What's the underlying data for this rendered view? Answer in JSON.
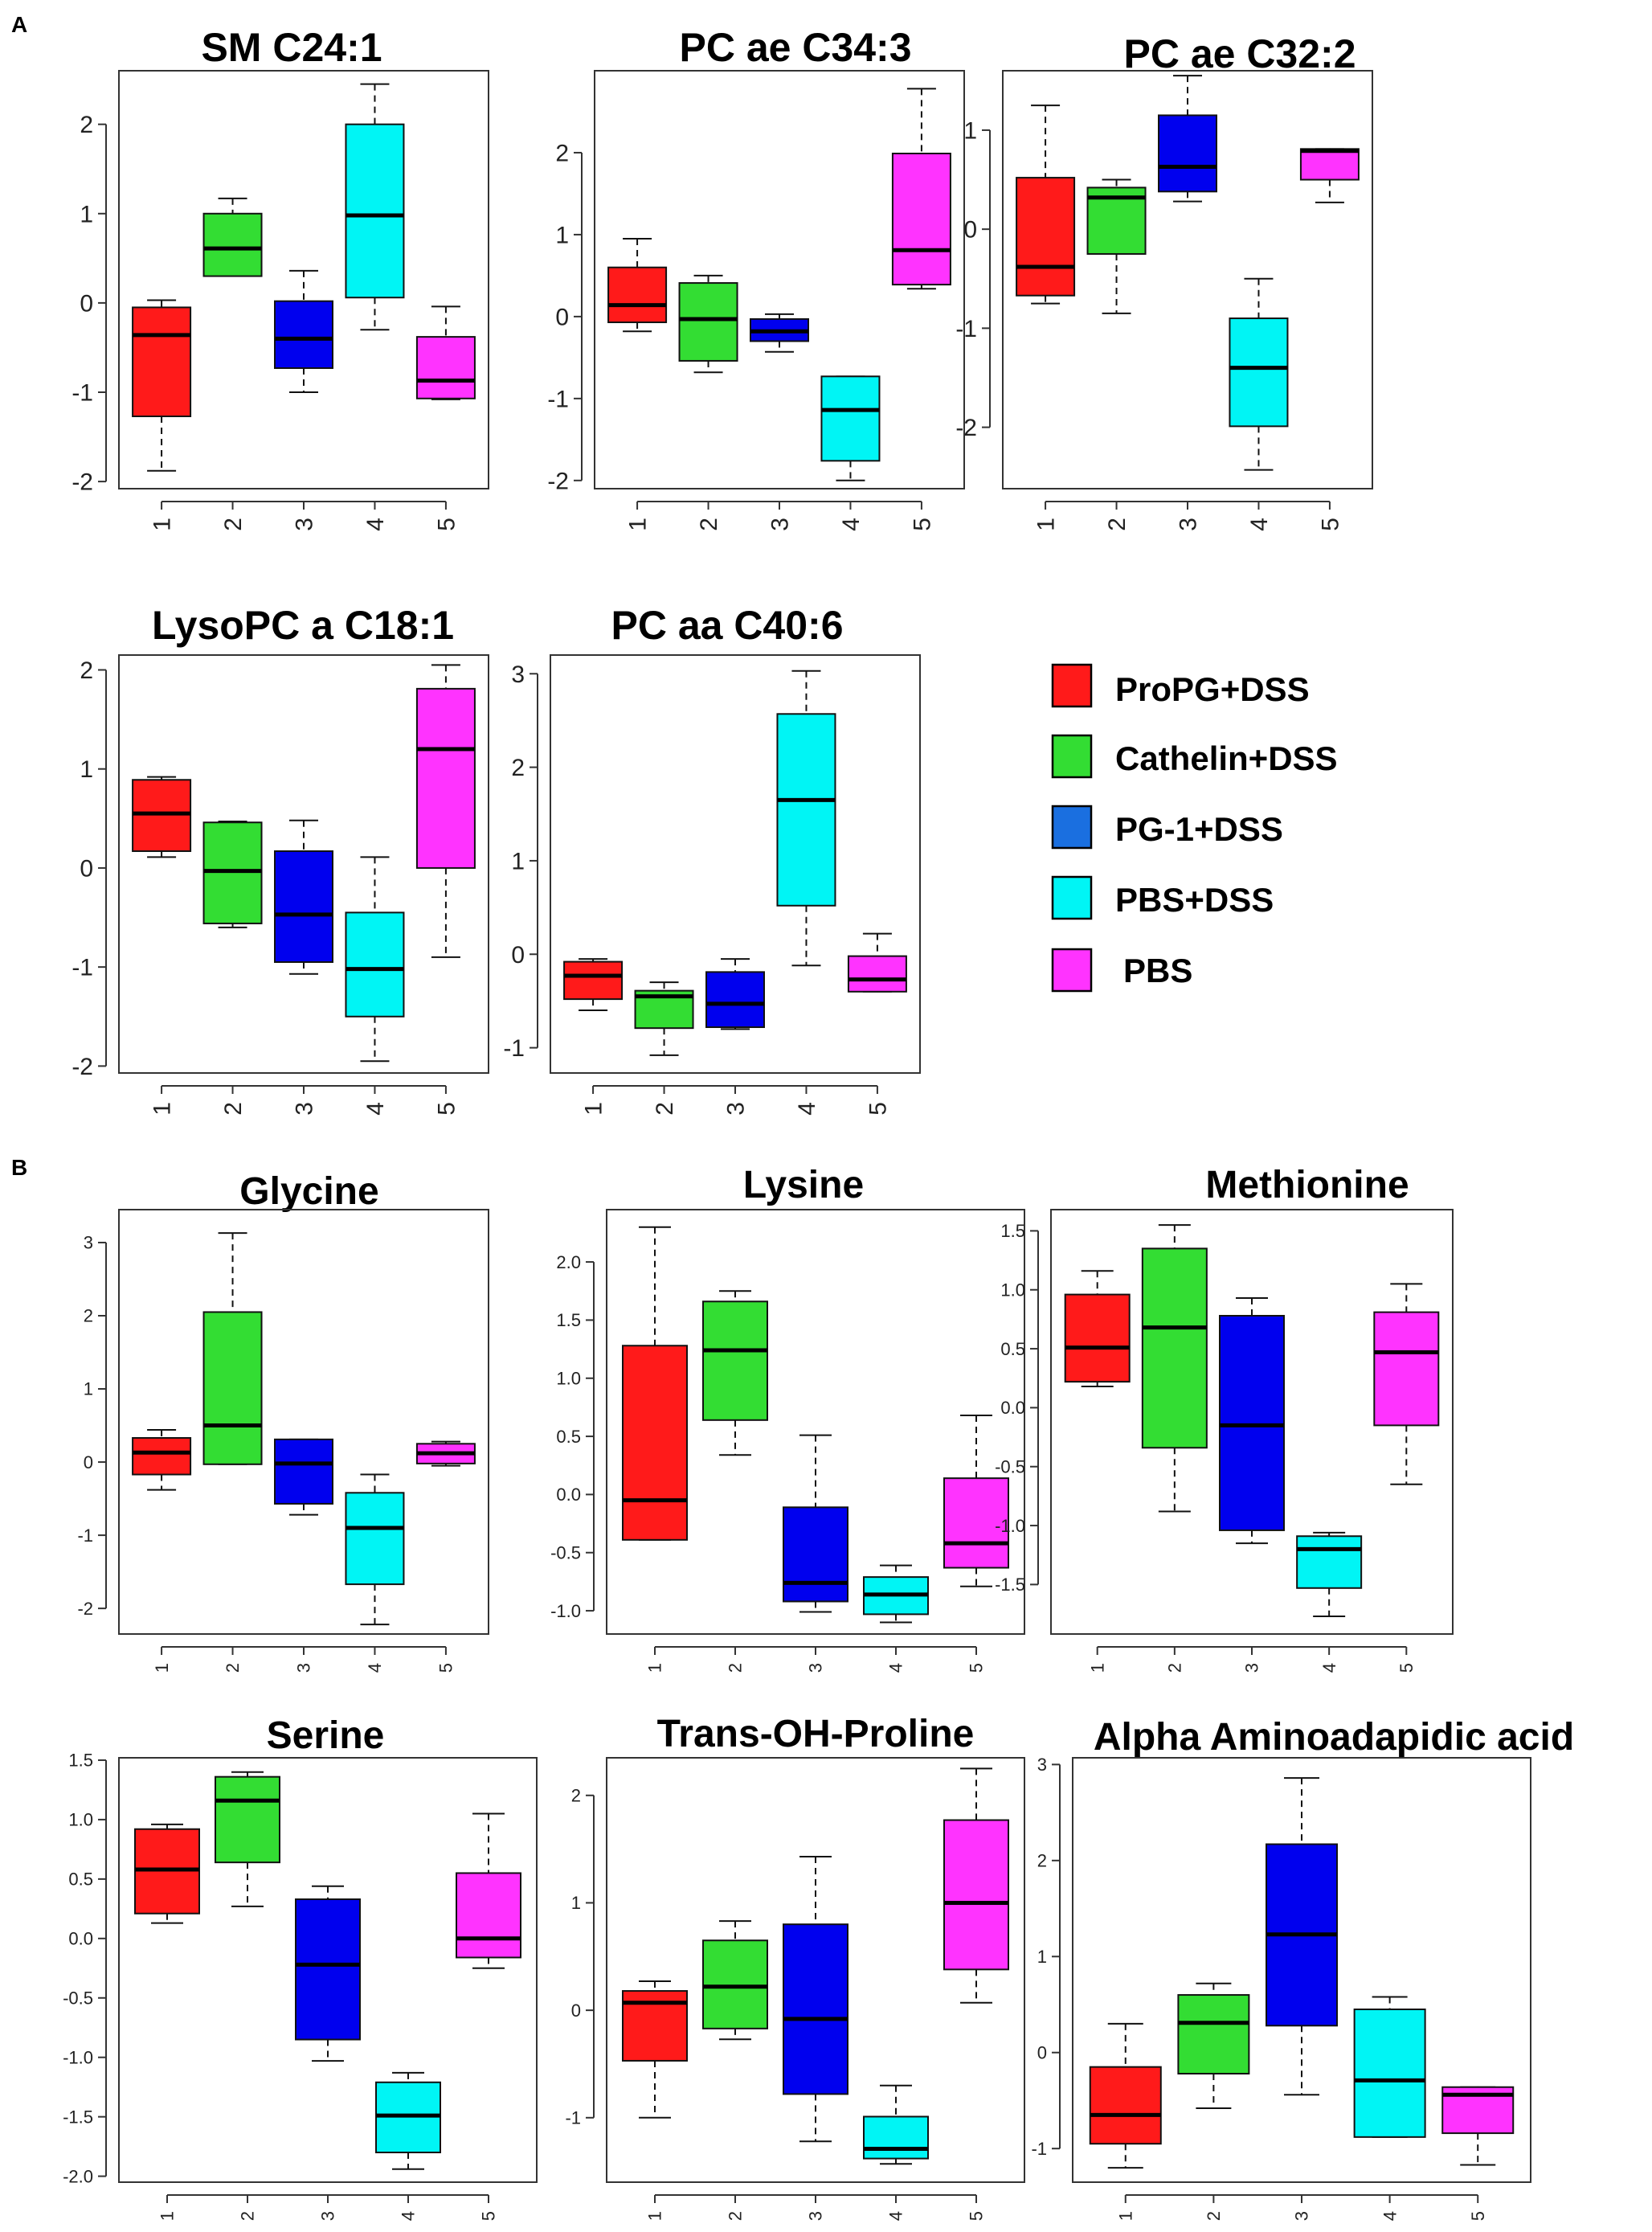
{
  "panel_labels": [
    "A",
    "B"
  ],
  "colors": {
    "group1": "#ff1a1a",
    "group2": "#33dd33",
    "group3": "#0000ee",
    "group4": "#00f5f5",
    "group5": "#ff33ff"
  },
  "legend": [
    {
      "label": "ProPG+DSS",
      "color": "#ff1a1a"
    },
    {
      "label": "Cathelin+DSS",
      "color": "#33dd33"
    },
    {
      "label": "PG-1+DSS",
      "color": "#1a6fe0"
    },
    {
      "label": "PBS+DSS",
      "color": "#00f5f5"
    },
    {
      "label": "PBS",
      "color": "#ff33ff"
    }
  ],
  "chart_data": [
    {
      "type": "box",
      "panel": "A",
      "title": "SM C24:1",
      "categories": [
        "1",
        "2",
        "3",
        "4",
        "5"
      ],
      "ylim": [
        -2.08,
        2.6
      ],
      "yticks": [
        "2",
        "1",
        "0",
        "-1",
        "-2"
      ],
      "ytick_values": [
        2,
        1,
        0,
        -1,
        -2
      ],
      "boxes": [
        {
          "min": -1.88,
          "q1": -1.27,
          "median": -0.36,
          "q3": -0.05,
          "max": 0.03
        },
        {
          "min": 0.3,
          "q1": 0.3,
          "median": 0.61,
          "q3": 1.0,
          "max": 1.17
        },
        {
          "min": -1.0,
          "q1": -0.73,
          "median": -0.4,
          "q3": 0.02,
          "max": 0.36
        },
        {
          "min": -0.3,
          "q1": 0.06,
          "median": 0.98,
          "q3": 2.0,
          "max": 2.45
        },
        {
          "min": -1.08,
          "q1": -1.07,
          "median": -0.87,
          "q3": -0.38,
          "max": -0.04
        }
      ]
    },
    {
      "type": "box",
      "panel": "A",
      "title": "PC ae C34:3",
      "categories": [
        "1",
        "2",
        "3",
        "4",
        "5"
      ],
      "ylim": [
        -2.1,
        3.0
      ],
      "yticks": [
        "2",
        "1",
        "0",
        "-1",
        "-2"
      ],
      "ytick_values": [
        2,
        1,
        0,
        -1,
        -2
      ],
      "boxes": [
        {
          "min": -0.18,
          "q1": -0.07,
          "median": 0.14,
          "q3": 0.6,
          "max": 0.95
        },
        {
          "min": -0.68,
          "q1": -0.54,
          "median": -0.03,
          "q3": 0.41,
          "max": 0.5
        },
        {
          "min": -0.43,
          "q1": -0.3,
          "median": -0.18,
          "q3": -0.03,
          "max": 0.03
        },
        {
          "min": -2.0,
          "q1": -1.76,
          "median": -1.14,
          "q3": -0.73,
          "max": -0.73
        },
        {
          "min": 0.34,
          "q1": 0.39,
          "median": 0.81,
          "q3": 1.99,
          "max": 2.78
        }
      ]
    },
    {
      "type": "box",
      "panel": "A",
      "title": "PC ae C32:2",
      "categories": [
        "1",
        "2",
        "3",
        "4",
        "5"
      ],
      "ylim": [
        -2.62,
        1.6
      ],
      "yticks": [
        "1",
        "0",
        "-1",
        "-2"
      ],
      "ytick_values": [
        1,
        0,
        -1,
        -2
      ],
      "boxes": [
        {
          "min": -0.75,
          "q1": -0.67,
          "median": -0.38,
          "q3": 0.52,
          "max": 1.25
        },
        {
          "min": -0.85,
          "q1": -0.25,
          "median": 0.32,
          "q3": 0.42,
          "max": 0.5
        },
        {
          "min": 0.28,
          "q1": 0.38,
          "median": 0.63,
          "q3": 1.15,
          "max": 1.55
        },
        {
          "min": -2.43,
          "q1": -1.99,
          "median": -1.4,
          "q3": -0.9,
          "max": -0.5
        },
        {
          "min": 0.27,
          "q1": 0.5,
          "median": 0.79,
          "q3": 0.81,
          "max": 0.81
        }
      ]
    },
    {
      "type": "box",
      "panel": "A",
      "title": "LysoPC a C18:1",
      "categories": [
        "1",
        "2",
        "3",
        "4",
        "5"
      ],
      "ylim": [
        -2.07,
        2.15
      ],
      "yticks": [
        "2",
        "1",
        "0",
        "-1",
        "-2"
      ],
      "ytick_values": [
        2,
        1,
        0,
        -1,
        -2
      ],
      "boxes": [
        {
          "min": 0.11,
          "q1": 0.17,
          "median": 0.55,
          "q3": 0.89,
          "max": 0.92
        },
        {
          "min": -0.6,
          "q1": -0.56,
          "median": -0.03,
          "q3": 0.46,
          "max": 0.47
        },
        {
          "min": -1.07,
          "q1": -0.95,
          "median": -0.47,
          "q3": 0.17,
          "max": 0.48
        },
        {
          "min": -1.95,
          "q1": -1.5,
          "median": -1.02,
          "q3": -0.45,
          "max": 0.11
        },
        {
          "min": -0.9,
          "q1": 0.0,
          "median": 1.2,
          "q3": 1.81,
          "max": 2.05
        }
      ]
    },
    {
      "type": "box",
      "panel": "A",
      "title": "PC aa  C40:6",
      "categories": [
        "1",
        "2",
        "3",
        "4",
        "5"
      ],
      "ylim": [
        -1.27,
        3.2
      ],
      "yticks": [
        "3",
        "2",
        "1",
        "0",
        "-1"
      ],
      "ytick_values": [
        3,
        2,
        1,
        0,
        -1
      ],
      "boxes": [
        {
          "min": -0.6,
          "q1": -0.48,
          "median": -0.23,
          "q3": -0.08,
          "max": -0.05
        },
        {
          "min": -1.08,
          "q1": -0.79,
          "median": -0.45,
          "q3": -0.39,
          "max": -0.3
        },
        {
          "min": -0.8,
          "q1": -0.78,
          "median": -0.53,
          "q3": -0.19,
          "max": -0.05
        },
        {
          "min": -0.12,
          "q1": 0.52,
          "median": 1.65,
          "q3": 2.57,
          "max": 3.03
        },
        {
          "min": -0.4,
          "q1": -0.4,
          "median": -0.27,
          "q3": -0.02,
          "max": 0.22
        }
      ]
    },
    {
      "type": "box",
      "panel": "B",
      "title": "Glycine",
      "categories": [
        "1",
        "2",
        "3",
        "4",
        "5"
      ],
      "ylim": [
        -2.35,
        3.45
      ],
      "yticks": [
        "3",
        "2",
        "1",
        "0",
        "-1",
        "-2"
      ],
      "ytick_values": [
        3,
        2,
        1,
        0,
        -1,
        -2
      ],
      "boxes": [
        {
          "min": -0.38,
          "q1": -0.17,
          "median": 0.13,
          "q3": 0.33,
          "max": 0.44
        },
        {
          "min": -0.03,
          "q1": -0.03,
          "median": 0.5,
          "q3": 2.05,
          "max": 3.13
        },
        {
          "min": -0.72,
          "q1": -0.57,
          "median": -0.02,
          "q3": 0.31,
          "max": 0.31
        },
        {
          "min": -2.22,
          "q1": -1.67,
          "median": -0.9,
          "q3": -0.42,
          "max": -0.17
        },
        {
          "min": -0.05,
          "q1": -0.02,
          "median": 0.12,
          "q3": 0.25,
          "max": 0.28
        }
      ]
    },
    {
      "type": "box",
      "panel": "B",
      "title": "Lysine",
      "categories": [
        "1",
        "2",
        "3",
        "4",
        "5"
      ],
      "ylim": [
        -1.2,
        2.45
      ],
      "yticks": [
        "2.0",
        "1.5",
        "1.0",
        "0.5",
        "0.0",
        "-0.5",
        "-1.0"
      ],
      "ytick_values": [
        2.0,
        1.5,
        1.0,
        0.5,
        0.0,
        -0.5,
        -1.0
      ],
      "boxes": [
        {
          "min": -0.39,
          "q1": -0.39,
          "median": -0.05,
          "q3": 1.28,
          "max": 2.3
        },
        {
          "min": 0.34,
          "q1": 0.64,
          "median": 1.24,
          "q3": 1.66,
          "max": 1.75
        },
        {
          "min": -1.01,
          "q1": -0.92,
          "median": -0.76,
          "q3": -0.11,
          "max": 0.51
        },
        {
          "min": -1.1,
          "q1": -1.03,
          "median": -0.86,
          "q3": -0.71,
          "max": -0.61
        },
        {
          "min": -0.79,
          "q1": -0.63,
          "median": -0.42,
          "q3": 0.14,
          "max": 0.68
        }
      ]
    },
    {
      "type": "box",
      "panel": "B",
      "title": "Methionine",
      "categories": [
        "1",
        "2",
        "3",
        "4",
        "5"
      ],
      "ylim": [
        -1.92,
        1.68
      ],
      "yticks": [
        "1.5",
        "1.0",
        "0.5",
        "0.0",
        "-0.5",
        "-1.0",
        "-1.5"
      ],
      "ytick_values": [
        1.5,
        1.0,
        0.5,
        0.0,
        -0.5,
        -1.0,
        -1.5
      ],
      "boxes": [
        {
          "min": 0.18,
          "q1": 0.22,
          "median": 0.51,
          "q3": 0.96,
          "max": 1.16
        },
        {
          "min": -0.88,
          "q1": -0.34,
          "median": 0.68,
          "q3": 1.35,
          "max": 1.55
        },
        {
          "min": -1.15,
          "q1": -1.04,
          "median": -0.15,
          "q3": 0.78,
          "max": 0.93
        },
        {
          "min": -1.77,
          "q1": -1.53,
          "median": -1.2,
          "q3": -1.09,
          "max": -1.06
        },
        {
          "min": -0.65,
          "q1": -0.15,
          "median": 0.47,
          "q3": 0.81,
          "max": 1.05
        }
      ]
    },
    {
      "type": "box",
      "panel": "B",
      "title": "Serine",
      "categories": [
        "1",
        "2",
        "3",
        "4",
        "5"
      ],
      "ylim": [
        -2.05,
        1.52
      ],
      "yticks": [
        "1.5",
        "1.0",
        "0.5",
        "0.0",
        "-0.5",
        "-1.0",
        "-1.5",
        "-2.0"
      ],
      "ytick_values": [
        1.5,
        1.0,
        0.5,
        0.0,
        -0.5,
        -1.0,
        -1.5,
        -2.0
      ],
      "boxes": [
        {
          "min": 0.13,
          "q1": 0.21,
          "median": 0.58,
          "q3": 0.92,
          "max": 0.96
        },
        {
          "min": 0.27,
          "q1": 0.64,
          "median": 1.16,
          "q3": 1.36,
          "max": 1.4
        },
        {
          "min": -1.03,
          "q1": -0.85,
          "median": -0.22,
          "q3": 0.33,
          "max": 0.44
        },
        {
          "min": -1.94,
          "q1": -1.8,
          "median": -1.49,
          "q3": -1.21,
          "max": -1.13
        },
        {
          "min": -0.25,
          "q1": -0.16,
          "median": 0.0,
          "q3": 0.55,
          "max": 1.05
        }
      ]
    },
    {
      "type": "box",
      "panel": "B",
      "title": "Trans-OH-Proline",
      "categories": [
        "1",
        "2",
        "3",
        "4",
        "5"
      ],
      "ylim": [
        -1.6,
        2.35
      ],
      "yticks": [
        "2",
        "1",
        "0",
        "-1"
      ],
      "ytick_values": [
        2,
        1,
        0,
        -1
      ],
      "boxes": [
        {
          "min": -1.0,
          "q1": -0.47,
          "median": 0.07,
          "q3": 0.18,
          "max": 0.27
        },
        {
          "min": -0.27,
          "q1": -0.17,
          "median": 0.22,
          "q3": 0.65,
          "max": 0.83
        },
        {
          "min": -1.22,
          "q1": -0.78,
          "median": -0.08,
          "q3": 0.8,
          "max": 1.43
        },
        {
          "min": -1.43,
          "q1": -1.38,
          "median": -1.29,
          "q3": -0.99,
          "max": -0.7
        },
        {
          "min": 0.07,
          "q1": 0.38,
          "median": 1.0,
          "q3": 1.77,
          "max": 2.25
        }
      ]
    },
    {
      "type": "box",
      "panel": "B",
      "title": "Alpha  Aminoadapidic acid",
      "categories": [
        "1",
        "2",
        "3",
        "4",
        "5"
      ],
      "ylim": [
        -1.35,
        3.07
      ],
      "yticks": [
        "3",
        "2",
        "1",
        "0",
        "-1"
      ],
      "ytick_values": [
        3,
        2,
        1,
        0,
        -1
      ],
      "boxes": [
        {
          "min": -1.2,
          "q1": -0.95,
          "median": -0.65,
          "q3": -0.15,
          "max": 0.3
        },
        {
          "min": -0.58,
          "q1": -0.22,
          "median": 0.31,
          "q3": 0.6,
          "max": 0.72
        },
        {
          "min": -0.44,
          "q1": 0.28,
          "median": 1.23,
          "q3": 2.17,
          "max": 2.86
        },
        {
          "min": -0.88,
          "q1": -0.88,
          "median": -0.29,
          "q3": 0.45,
          "max": 0.58
        },
        {
          "min": -1.17,
          "q1": -0.84,
          "median": -0.44,
          "q3": -0.36,
          "max": -0.36
        }
      ]
    }
  ]
}
